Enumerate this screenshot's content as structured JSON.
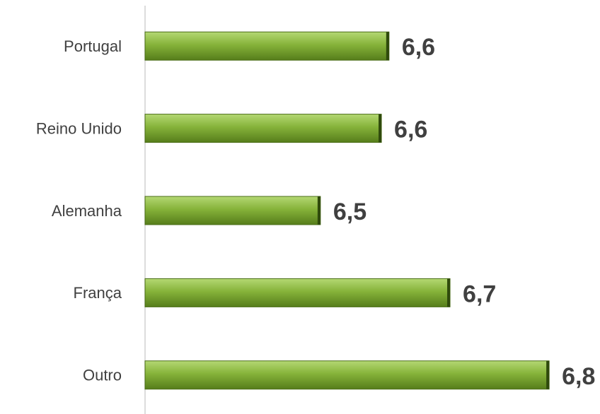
{
  "chart_data": {
    "type": "barh",
    "categories": [
      "Portugal",
      "Reino Unido",
      "Alemanha",
      "França",
      "Outro"
    ],
    "values": [
      6.59,
      6.58,
      6.5,
      6.67,
      6.8
    ],
    "value_labels": [
      "6,6",
      "6,6",
      "6,5",
      "6,7",
      "6,8"
    ],
    "color": "#77a52c",
    "xlim": [
      6.27,
      6.85
    ]
  }
}
